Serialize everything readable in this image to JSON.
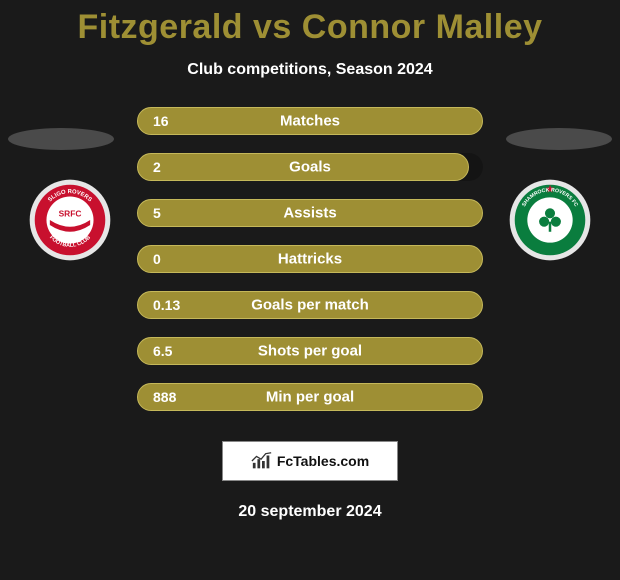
{
  "title": "Fitzgerald vs Connor Malley",
  "title_color": "#9e8f34",
  "subtitle": "Club competitions, Season 2024",
  "shadow_color": "#4a4a4a",
  "stat_fill_color": "#9e8f34",
  "stat_border_color": "#c5b85a",
  "stats": [
    {
      "value": "16",
      "label": "Matches",
      "fill_pct": 100
    },
    {
      "value": "2",
      "label": "Goals",
      "fill_pct": 96
    },
    {
      "value": "5",
      "label": "Assists",
      "fill_pct": 100
    },
    {
      "value": "0",
      "label": "Hattricks",
      "fill_pct": 100
    },
    {
      "value": "0.13",
      "label": "Goals per match",
      "fill_pct": 100
    },
    {
      "value": "6.5",
      "label": "Shots per goal",
      "fill_pct": 100
    },
    {
      "value": "888",
      "label": "Min per goal",
      "fill_pct": 100
    }
  ],
  "brand_text": "FcTables.com",
  "date_text": "20 september 2024",
  "crest_left": {
    "outer": "#e6e6e6",
    "ring": "#c8102e",
    "inner_bg": "#ffffff",
    "ribbon": "#c8102e",
    "text_top": "SLIGO ROVERS",
    "text_center": "SRFC",
    "text_bottom": "FOOTBALL CLUB"
  },
  "crest_right": {
    "outer": "#e6e6e6",
    "ring": "#0a7d3e",
    "inner_bg": "#ffffff",
    "star_color": "#c8102e",
    "shamrock": "#0a7d3e",
    "text_top": "SHAMROCK ROVERS FC"
  }
}
